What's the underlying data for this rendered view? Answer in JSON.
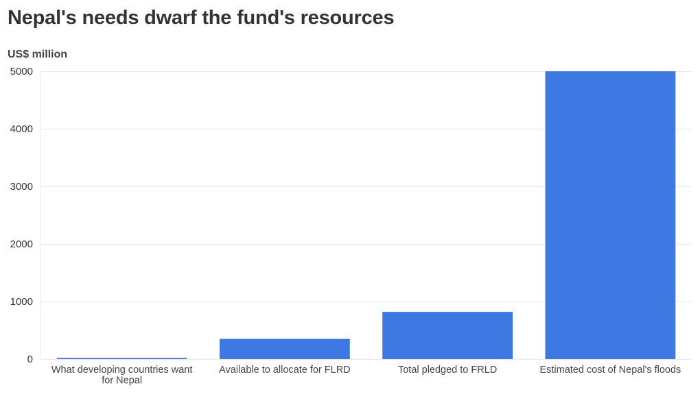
{
  "chart_data": {
    "type": "bar",
    "title": "Nepal's needs dwarf the fund's resources",
    "ylabel": "US$ million",
    "xlabel": "",
    "categories": [
      "What developing countries want for Nepal",
      "Available to allocate for FLRD",
      "Total pledged to FRLD",
      "Estimated cost of Nepal's floods"
    ],
    "category_lines": [
      [
        "What developing countries want",
        "for Nepal"
      ],
      [
        "Available to allocate for FLRD"
      ],
      [
        "Total pledged to FRLD"
      ],
      [
        "Estimated cost of Nepal's floods"
      ]
    ],
    "values": [
      20,
      350,
      820,
      5000
    ],
    "ylim": [
      0,
      5000
    ],
    "yticks": [
      0,
      1000,
      2000,
      3000,
      4000,
      5000
    ],
    "grid": true,
    "legend": "none",
    "bar_color": "#3d78e3",
    "grid_color": "#e8e8e8"
  }
}
